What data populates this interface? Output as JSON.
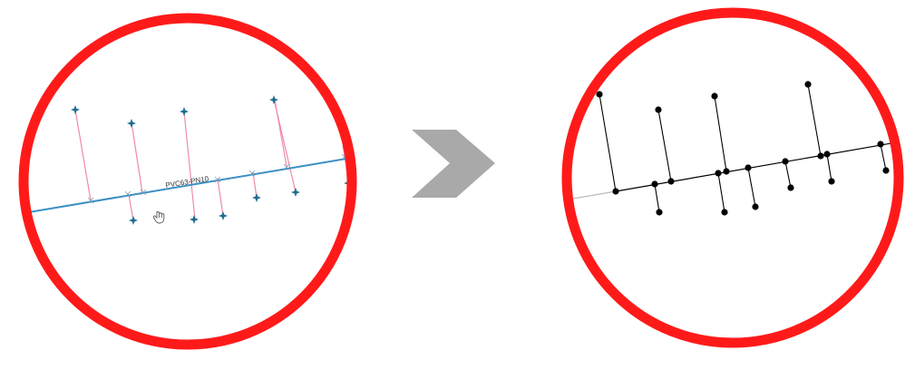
{
  "pipe_label": "PVC63-PN10",
  "colors": {
    "ring": "#ff1a1a",
    "main_pipe": "#3b8fc4",
    "service_line": "#f08aa8",
    "node": "#1f6f8f",
    "arrow": "#a9a9a9",
    "result": "#000000"
  },
  "icons": {
    "cursor": "hand-cursor-icon",
    "arrow": "chevron-right-icon"
  }
}
